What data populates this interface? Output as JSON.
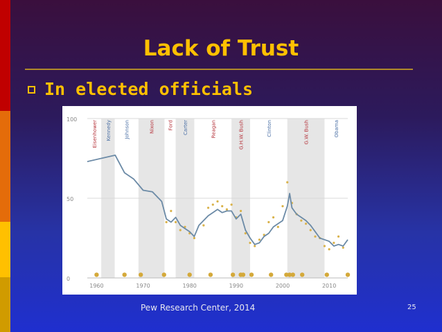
{
  "slide": {
    "title": "Lack of Trust",
    "bullet": "In elected officials",
    "source": "Pew Research Center, 2014",
    "page_number": "25",
    "colors": {
      "title": "#ffc000",
      "left_bar": [
        "#c00000",
        "#e46c0a",
        "#ffc000",
        "#d09b00"
      ]
    }
  },
  "chart_data": {
    "type": "line",
    "xlim": [
      1958,
      2014
    ],
    "ylim": [
      0,
      100
    ],
    "yticks": [
      0,
      50,
      100
    ],
    "xticks": [
      1960,
      1970,
      1980,
      1990,
      2000,
      2010
    ],
    "grid": true,
    "presidencies": [
      {
        "name": "Eisenhower",
        "start": 1958,
        "end": 1961,
        "party": "R",
        "shaded": false
      },
      {
        "name": "Kennedy",
        "start": 1961,
        "end": 1963.9,
        "party": "D",
        "shaded": true
      },
      {
        "name": "Johnson",
        "start": 1963.9,
        "end": 1969,
        "party": "D",
        "shaded": false
      },
      {
        "name": "Nixon",
        "start": 1969,
        "end": 1974.6,
        "party": "R",
        "shaded": true
      },
      {
        "name": "Ford",
        "start": 1974.6,
        "end": 1977,
        "party": "R",
        "shaded": false
      },
      {
        "name": "Carter",
        "start": 1977,
        "end": 1981,
        "party": "D",
        "shaded": true
      },
      {
        "name": "Reagan",
        "start": 1981,
        "end": 1989,
        "party": "R",
        "shaded": false
      },
      {
        "name": "G.H.W. Bush",
        "start": 1989,
        "end": 1993,
        "party": "R",
        "shaded": true
      },
      {
        "name": "Clinton",
        "start": 1993,
        "end": 2001,
        "party": "D",
        "shaded": false
      },
      {
        "name": "G.W. Bush",
        "start": 2001,
        "end": 2009,
        "party": "R",
        "shaded": true
      },
      {
        "name": "Obama",
        "start": 2009,
        "end": 2014,
        "party": "D",
        "shaded": false
      }
    ],
    "trend_line": {
      "x": [
        1958,
        1964,
        1966,
        1968,
        1970,
        1972,
        1974,
        1975,
        1976,
        1977,
        1978,
        1979,
        1980,
        1981,
        1982,
        1984,
        1985,
        1986,
        1987,
        1988,
        1989,
        1990,
        1991,
        1992,
        1993,
        1994,
        1995,
        1996,
        1997,
        1998,
        1999,
        2000,
        2001,
        2001.5,
        2002,
        2003,
        2004,
        2005,
        2006,
        2007,
        2008,
        2009,
        2010,
        2011,
        2012,
        2013,
        2014
      ],
      "y": [
        73,
        77,
        66,
        62,
        55,
        54,
        48,
        37,
        35,
        38,
        33,
        31,
        29,
        26,
        33,
        39,
        41,
        43,
        41,
        42,
        42,
        37,
        40,
        30,
        25,
        21,
        22,
        26,
        28,
        32,
        34,
        36,
        45,
        53,
        44,
        40,
        38,
        36,
        33,
        29,
        25,
        24,
        23,
        20,
        21,
        20,
        24
      ]
    },
    "survey_points": {
      "x": [
        1975,
        1976,
        1977,
        1978,
        1979,
        1980,
        1981,
        1983,
        1984,
        1985,
        1986,
        1987,
        1988,
        1989,
        1990,
        1991,
        1992,
        1993,
        1994,
        1995,
        1996,
        1997,
        1998,
        1999,
        2000,
        2001,
        2002,
        2003,
        2004,
        2005,
        2006,
        2007,
        2008,
        2009,
        2010,
        2011,
        2012,
        2013
      ],
      "y": [
        35,
        42,
        35,
        30,
        32,
        28,
        25,
        33,
        44,
        46,
        48,
        45,
        43,
        46,
        38,
        42,
        28,
        22,
        20,
        24,
        27,
        35,
        38,
        32,
        45,
        60,
        47,
        40,
        36,
        34,
        30,
        26,
        25,
        20,
        18,
        22,
        26,
        19
      ]
    },
    "recession_markers": [
      1960,
      1966,
      1969.5,
      1974.5,
      1980,
      1984.5,
      1989.3,
      1991,
      1991.5,
      1993.3,
      1997.5,
      2000.8,
      2001.5,
      2002.2,
      2004.2,
      2009.5,
      2014
    ]
  }
}
